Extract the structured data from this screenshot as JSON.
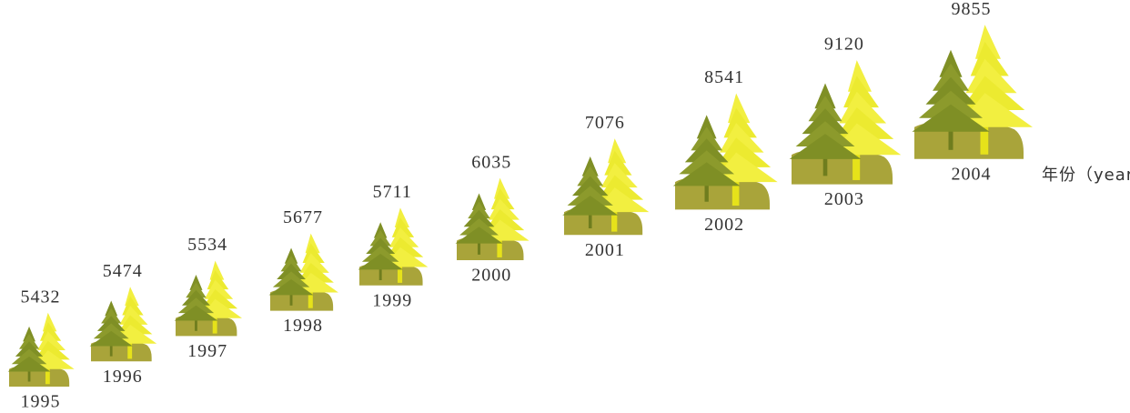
{
  "chart_data": {
    "type": "pictograph",
    "categories": [
      "1995",
      "1996",
      "1997",
      "1998",
      "1999",
      "2000",
      "2001",
      "2002",
      "2003",
      "2004"
    ],
    "values": [
      5432,
      5474,
      5534,
      5677,
      5711,
      6035,
      7076,
      8541,
      9120,
      9855
    ],
    "x_label": "年份（year）"
  }
}
